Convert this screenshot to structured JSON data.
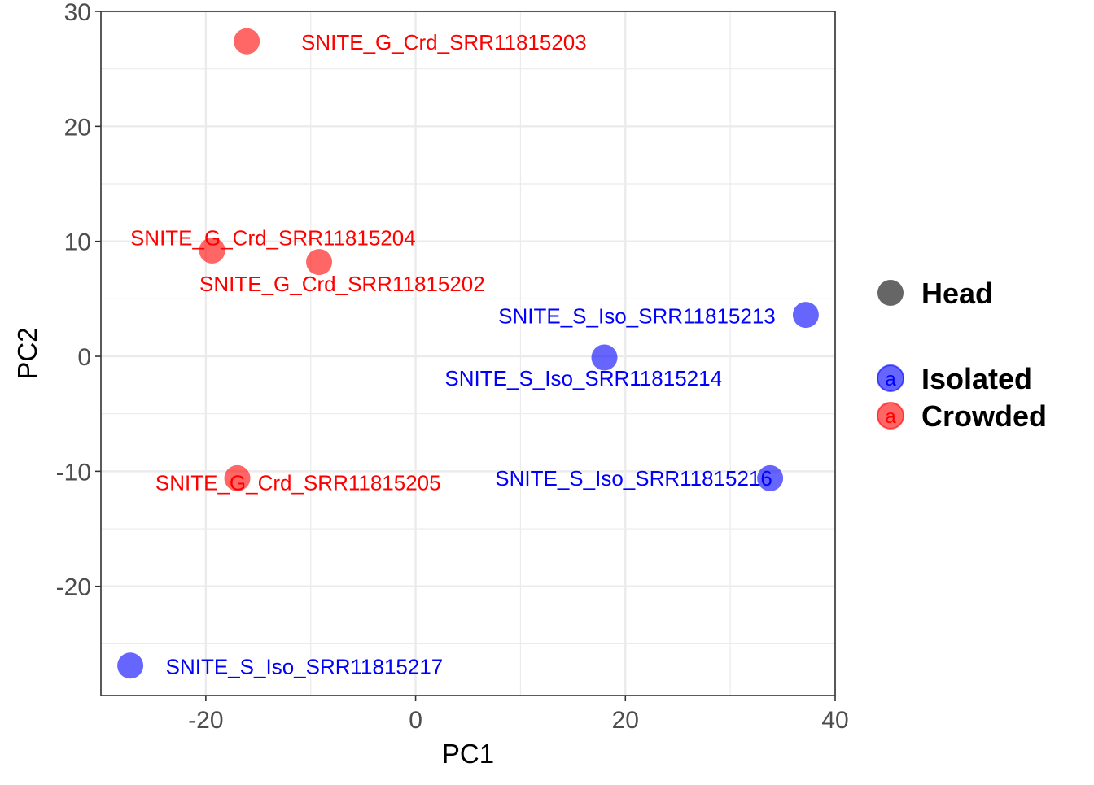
{
  "chart_data": {
    "type": "scatter",
    "xlabel": "PC1",
    "ylabel": "PC2",
    "xlim": [
      -30,
      40
    ],
    "ylim": [
      -29.5,
      30
    ],
    "x_ticks": [
      -20,
      0,
      20,
      40
    ],
    "x_tick_labels": [
      "-20",
      "0",
      "20",
      "40"
    ],
    "y_ticks": [
      -20,
      -10,
      0,
      10,
      20,
      30
    ],
    "y_tick_labels": [
      "-20",
      "-10",
      "0",
      "10",
      "20",
      "30"
    ],
    "grid": true,
    "legend_position": "right",
    "legend": {
      "shape_entries": [
        {
          "label": "Head",
          "color": "#666666"
        }
      ],
      "color_entries": [
        {
          "label": "Isolated",
          "color": "#0000ff",
          "glyph": "a"
        },
        {
          "label": "Crowded",
          "color": "#ff0000",
          "glyph": "a"
        }
      ]
    },
    "colors": {
      "Isolated": "#0000ff",
      "Crowded": "#ff0000"
    },
    "series": [
      {
        "name": "Isolated",
        "points": [
          {
            "x": 37.2,
            "y": 3.6,
            "label": "SNITE_S_Iso_SRR11815213",
            "label_x": 21.1,
            "label_y": 3.5
          },
          {
            "x": 18.0,
            "y": -0.1,
            "label": "SNITE_S_Iso_SRR11815214",
            "label_x": 16.0,
            "label_y": -1.9
          },
          {
            "x": 33.8,
            "y": -10.6,
            "label": "SNITE_S_Iso_SRR11815216",
            "label_x": 20.8,
            "label_y": -10.6
          },
          {
            "x": -27.2,
            "y": -26.9,
            "label": "SNITE_S_Iso_SRR11815217",
            "label_x": -10.6,
            "label_y": -27.0
          }
        ]
      },
      {
        "name": "Crowded",
        "points": [
          {
            "x": -16.1,
            "y": 27.4,
            "label": "SNITE_G_Crd_SRR11815203",
            "label_x": 2.7,
            "label_y": 27.3
          },
          {
            "x": -19.4,
            "y": 9.2,
            "label": "SNITE_G_Crd_SRR11815204",
            "label_x": -13.6,
            "label_y": 10.3
          },
          {
            "x": -9.2,
            "y": 8.2,
            "label": "SNITE_G_Crd_SRR11815202",
            "label_x": -7.0,
            "label_y": 6.3
          },
          {
            "x": -17.0,
            "y": -10.6,
            "label": "SNITE_G_Crd_SRR11815205",
            "label_x": -11.2,
            "label_y": -11.0
          }
        ]
      }
    ]
  }
}
